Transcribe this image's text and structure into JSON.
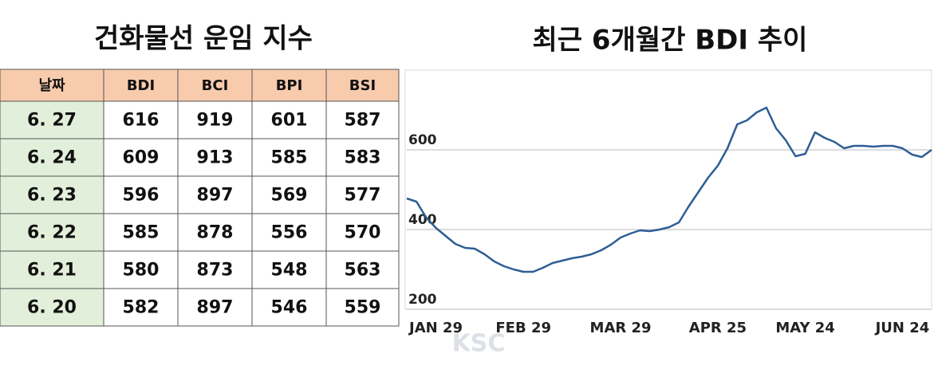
{
  "table": {
    "title": "건화물선 운임 지수",
    "header": [
      "날짜",
      "BDI",
      "BCI",
      "BPI",
      "BSI"
    ],
    "rows": [
      [
        "6. 27",
        616,
        919,
        601,
        587
      ],
      [
        "6. 24",
        609,
        913,
        585,
        583
      ],
      [
        "6. 23",
        596,
        897,
        569,
        577
      ],
      [
        "6. 22",
        585,
        878,
        556,
        570
      ],
      [
        "6. 21",
        580,
        873,
        548,
        563
      ],
      [
        "6. 20",
        582,
        897,
        546,
        559
      ]
    ]
  },
  "chart_data": {
    "type": "line",
    "title": "최근 6개월간 BDI 추이",
    "categories": [
      null,
      null,
      null,
      "JAN 29",
      null,
      null,
      null,
      null,
      null,
      null,
      null,
      null,
      "FEB 29",
      null,
      null,
      null,
      null,
      null,
      null,
      null,
      null,
      null,
      "MAR 29",
      null,
      null,
      null,
      null,
      null,
      null,
      null,
      null,
      null,
      "APR 25",
      null,
      null,
      null,
      null,
      null,
      null,
      null,
      null,
      "MAY 24",
      null,
      null,
      null,
      null,
      null,
      null,
      null,
      null,
      null,
      "JUN 24",
      null,
      null,
      null
    ],
    "values": [
      478,
      470,
      430,
      404,
      384,
      364,
      354,
      352,
      338,
      320,
      308,
      300,
      294,
      294,
      304,
      316,
      322,
      328,
      332,
      338,
      348,
      362,
      380,
      390,
      398,
      396,
      400,
      406,
      418,
      458,
      494,
      530,
      560,
      604,
      664,
      674,
      694,
      706,
      654,
      624,
      584,
      590,
      644,
      630,
      620,
      604,
      610,
      610,
      608,
      610,
      610,
      604,
      588,
      582,
      600
    ],
    "color": "#2e5e95",
    "ylim": [
      200,
      800
    ],
    "yticks": [
      200,
      400,
      600
    ],
    "grid": true
  },
  "watermark": "KSC"
}
